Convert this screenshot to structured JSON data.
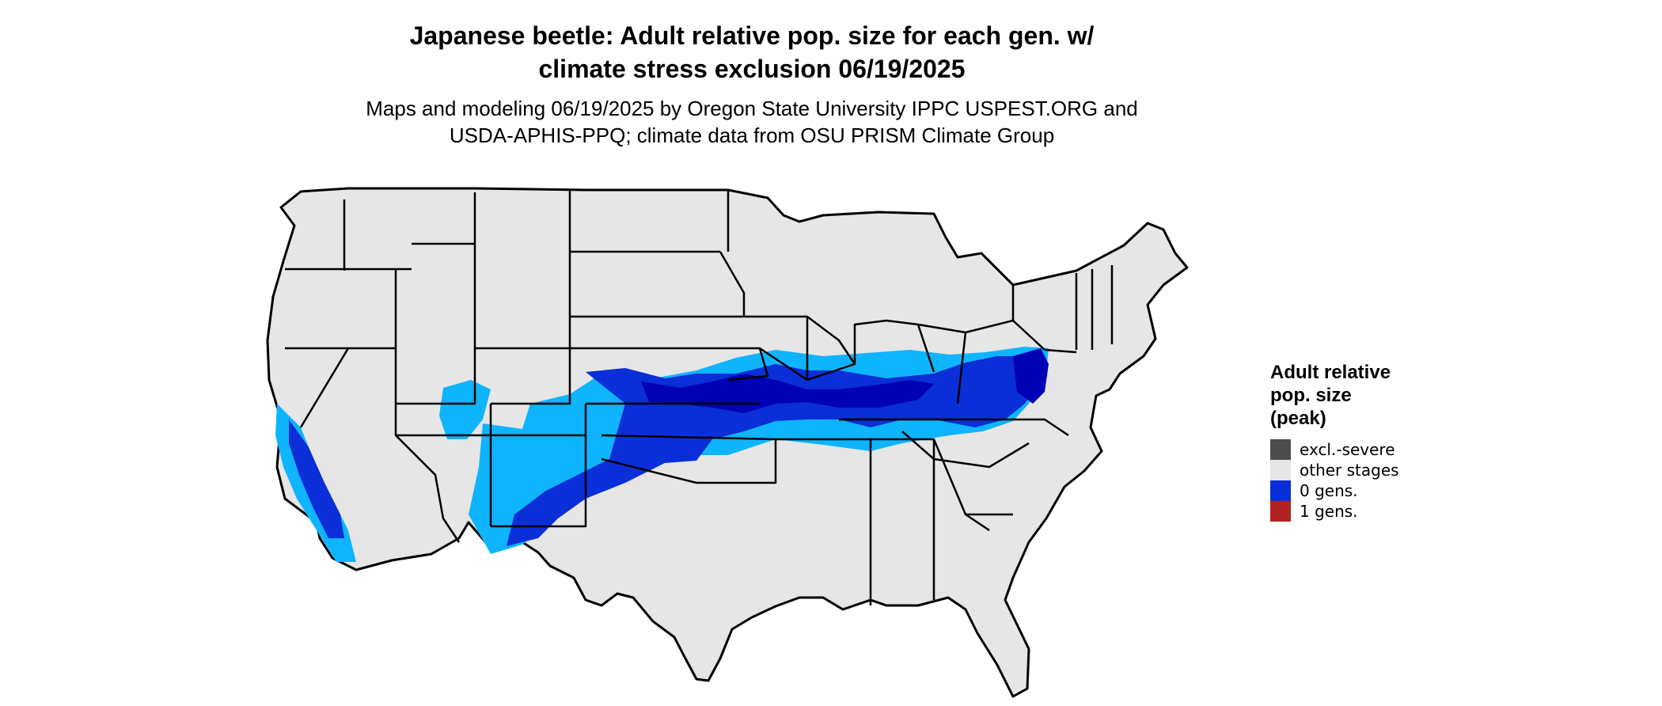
{
  "title": {
    "line1": "Japanese beetle: Adult relative pop. size for each gen. w/",
    "line2": "climate stress exclusion 06/19/2025"
  },
  "subtitle": {
    "line1": "Maps and modeling 06/19/2025 by Oregon State University IPPC USPEST.ORG and",
    "line2": "USDA-APHIS-PPQ; climate data from OSU PRISM Climate Group"
  },
  "legend": {
    "title_line1": "Adult relative",
    "title_line2": "pop. size",
    "title_line3": "(peak)",
    "items": [
      {
        "label": "excl.-severe",
        "color": "#4d4d4d"
      },
      {
        "label": "other stages",
        "color": "#e6e6e6"
      },
      {
        "label": "0 gens.",
        "color": "#0a2ed8"
      },
      {
        "label": "1 gens.",
        "color": "#b22222"
      }
    ]
  },
  "colors": {
    "land": "#e6e6e6",
    "border": "#000000",
    "light_blue": "#0fb4ff",
    "medium_blue": "#0a2ed8",
    "dark_blue": "#0000b4"
  }
}
